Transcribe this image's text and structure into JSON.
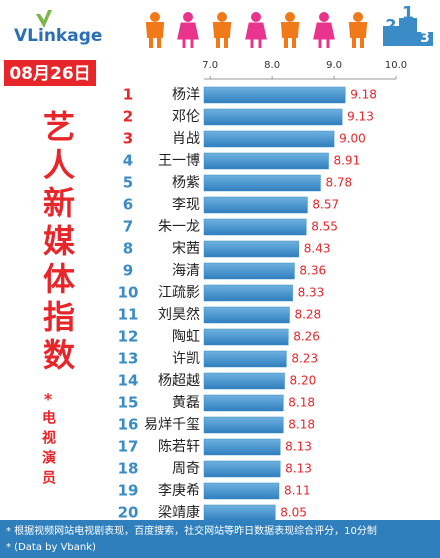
{
  "chart_data": {
    "type": "barh",
    "logo": "VLinkage",
    "podium": [
      "2",
      "1",
      "3"
    ],
    "date": "08月26日",
    "title": "艺人新媒体指数",
    "subtitle_mark": "*",
    "subtitle": "电视演员",
    "ranks": [
      1,
      2,
      3,
      4,
      5,
      6,
      7,
      8,
      9,
      10,
      11,
      12,
      13,
      14,
      15,
      16,
      17,
      18,
      19,
      20
    ],
    "categories": [
      "杨洋",
      "邓伦",
      "肖战",
      "王一博",
      "杨紫",
      "李现",
      "朱一龙",
      "宋茜",
      "海清",
      "江疏影",
      "刘昊然",
      "陶虹",
      "许凯",
      "杨超越",
      "黄磊",
      "易烊千玺",
      "陈若轩",
      "周奇",
      "李庚希",
      "梁靖康"
    ],
    "values": [
      9.18,
      9.13,
      9.0,
      8.91,
      8.78,
      8.57,
      8.55,
      8.43,
      8.36,
      8.33,
      8.28,
      8.26,
      8.23,
      8.2,
      8.18,
      8.18,
      8.13,
      8.13,
      8.11,
      8.05
    ],
    "value_labels": [
      "9.18",
      "9.13",
      "9.00",
      "8.91",
      "8.78",
      "8.57",
      "8.55",
      "8.43",
      "8.36",
      "8.33",
      "8.28",
      "8.26",
      "8.23",
      "8.20",
      "8.18",
      "8.18",
      "8.13",
      "8.13",
      "8.11",
      "8.05"
    ],
    "color": "#3a8bc6",
    "top_rank_color": "#e8262a",
    "xlim": [
      6.9,
      10.0
    ],
    "xticks": [
      {
        "value": 7,
        "label": "7.0"
      },
      {
        "value": 8,
        "label": "8.0"
      },
      {
        "value": 9,
        "label": "9.0"
      },
      {
        "value": 10,
        "label": "10.0"
      }
    ],
    "footnotes": [
      "* 根据视频网站电视剧表现，百度搜索，社交网站等昨日数据表现综合评分，10分制",
      "* (Data by Vbank)"
    ]
  }
}
